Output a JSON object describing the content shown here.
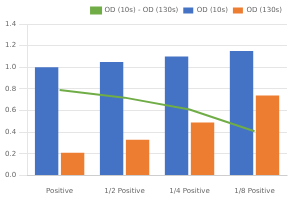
{
  "chart_data": {
    "type": "bar",
    "categories": [
      "Positive",
      "1/2 Positive",
      "1/4 Positive",
      "1/8 Positive"
    ],
    "series": [
      {
        "name": "OD (10s)",
        "color": "#4472C4",
        "values": [
          1.0,
          1.05,
          1.1,
          1.15
        ]
      },
      {
        "name": "OD (130s)",
        "color": "#ED7D31",
        "values": [
          0.21,
          0.33,
          0.49,
          0.74
        ]
      },
      {
        "name": "OD (10s) - OD (130s)",
        "type": "line",
        "color": "#70AD47",
        "values": [
          0.79,
          0.72,
          0.61,
          0.41
        ]
      }
    ],
    "ylim": [
      0,
      1.4
    ],
    "yticks": [
      {
        "value": 0,
        "label": "0.0"
      },
      0.2,
      0.4,
      0.6,
      0.8,
      {
        "value": 1.0,
        "label": "1.0"
      },
      1.2,
      1.4
    ],
    "grid": true,
    "legend": "upper right"
  }
}
